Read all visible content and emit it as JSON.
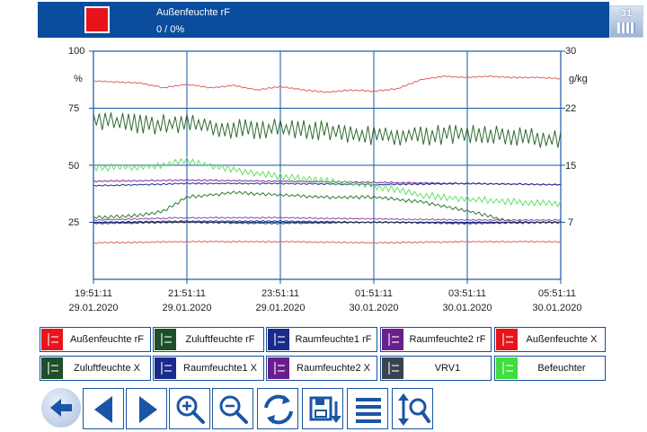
{
  "header": {
    "title": "Außenfeuchte rF",
    "value": "0 / 0%",
    "color": "#e8141c",
    "calendar_day": "31",
    "calendar_icon": "calendar-icon"
  },
  "chart_data": {
    "type": "line",
    "y_left": {
      "unit": "%",
      "ticks": [
        "100",
        "75",
        "50",
        "25"
      ],
      "range": [
        0,
        100
      ]
    },
    "y_right": {
      "unit": "g/kg",
      "ticks": [
        "30",
        "22",
        "15",
        "7"
      ],
      "range": [
        0,
        30
      ]
    },
    "x_ticks": [
      {
        "time": "19:51:11",
        "date": "29.01.2020"
      },
      {
        "time": "21:51:11",
        "date": "29.01.2020"
      },
      {
        "time": "23:51:11",
        "date": "29.01.2020"
      },
      {
        "time": "01:51:11",
        "date": "30.01.2020"
      },
      {
        "time": "03:51:11",
        "date": "30.01.2020"
      },
      {
        "time": "05:51:11",
        "date": "30.01.2020"
      }
    ],
    "x_range_hours": [
      0,
      10
    ],
    "grid": true,
    "series": [
      {
        "name": "Außenfeuchte rF",
        "color": "#e06060",
        "axis": "left",
        "x": [
          0,
          0.5,
          1,
          1.5,
          2,
          2.5,
          3,
          3.5,
          4,
          4.5,
          5,
          5.5,
          6,
          6.5,
          7,
          7.5,
          8,
          8.5,
          9,
          9.5,
          10
        ],
        "y": [
          87,
          86.5,
          86,
          84,
          85.5,
          84,
          85,
          83,
          84.5,
          83,
          82,
          83,
          82.5,
          83.5,
          87.5,
          89,
          88.5,
          89,
          88.5,
          88.5,
          88
        ]
      },
      {
        "name": "Zuluftfeuchte rF",
        "color": "#2f7a2f",
        "axis": "left",
        "x": [
          0,
          1,
          1.5,
          2,
          2.5,
          3,
          4,
          5,
          6,
          7,
          8,
          9,
          10
        ],
        "y": [
          27,
          28,
          30,
          36,
          37,
          38,
          37,
          36,
          36,
          34,
          30,
          25,
          25
        ]
      },
      {
        "name": "Raumfeuchte1 rF",
        "color": "#1f2fa6",
        "axis": "left",
        "x": [
          0,
          2,
          4,
          6,
          8,
          10
        ],
        "y": [
          25,
          25.5,
          25.5,
          25,
          25,
          25
        ]
      },
      {
        "name": "Raumfeuchte2 rF",
        "color": "#7a2aa0",
        "axis": "left",
        "x": [
          0,
          2,
          4,
          6,
          8,
          10
        ],
        "y": [
          43,
          43.5,
          43,
          42.5,
          42,
          41.5
        ]
      },
      {
        "name": "Außenfeuchte X",
        "color": "#e06060",
        "axis": "left",
        "x": [
          0,
          2,
          4,
          6,
          8,
          10
        ],
        "y": [
          16,
          16.5,
          16.5,
          16,
          16.5,
          16.5
        ]
      },
      {
        "name": "Zuluftfeuchte X",
        "color": "#2f6a2f",
        "axis": "left",
        "x": [
          0,
          1,
          1.5,
          2,
          3,
          4,
          5,
          6,
          7,
          8,
          9,
          10
        ],
        "y": [
          70,
          68,
          68,
          68,
          66,
          66,
          65,
          63,
          63,
          64,
          63,
          61
        ]
      },
      {
        "name": "Raumfeuchte1 X",
        "color": "#1f2f8a",
        "axis": "left",
        "x": [
          0,
          2,
          4,
          6,
          8,
          10
        ],
        "y": [
          41,
          42,
          42,
          41.5,
          42,
          41.5
        ]
      },
      {
        "name": "Raumfeuchte2 X",
        "color": "#8a4ab0",
        "axis": "left",
        "x": [
          0,
          2,
          4,
          6,
          8,
          10
        ],
        "y": [
          26,
          27,
          27,
          26.5,
          26,
          26
        ]
      },
      {
        "name": "VRV1",
        "color": "#333333",
        "axis": "left",
        "x": [
          0,
          2,
          4,
          6,
          8,
          10
        ],
        "y": [
          24.5,
          25,
          24.5,
          25,
          24.5,
          25
        ]
      },
      {
        "name": "Befeuchter",
        "color": "#66e066",
        "axis": "left",
        "x": [
          0,
          1,
          1.4,
          2,
          3,
          4,
          5,
          6,
          7,
          8,
          9,
          10
        ],
        "y": [
          49,
          49,
          50,
          52,
          48,
          45,
          43,
          41,
          37,
          35,
          34,
          33
        ]
      }
    ]
  },
  "legend": [
    {
      "label": "Außenfeuchte rF",
      "color": "#e8141c"
    },
    {
      "label": "Zuluftfeuchte rF",
      "color": "#1e4e2a"
    },
    {
      "label": "Raumfeuchte1 rF",
      "color": "#1a2a8c"
    },
    {
      "label": "Raumfeuchte2 rF",
      "color": "#6a1f8c"
    },
    {
      "label": "Außenfeuchte X",
      "color": "#e8141c"
    },
    {
      "label": "Zuluftfeuchte X",
      "color": "#1e4e2a"
    },
    {
      "label": "Raumfeuchte1 X",
      "color": "#1a2a8c"
    },
    {
      "label": "Raumfeuchte2 X",
      "color": "#6a1f8c"
    },
    {
      "label": "VRV1",
      "color": "#3a4450"
    },
    {
      "label": "Befeuchter",
      "color": "#3dde3d"
    }
  ],
  "toolbar": [
    {
      "icon": "back-arrow-icon"
    },
    {
      "icon": "arrow-left-icon"
    },
    {
      "icon": "arrow-right-icon"
    },
    {
      "icon": "zoom-in-icon"
    },
    {
      "icon": "zoom-out-icon"
    },
    {
      "icon": "refresh-icon"
    },
    {
      "icon": "save-export-icon"
    },
    {
      "icon": "list-icon"
    },
    {
      "icon": "vertical-zoom-icon"
    }
  ]
}
